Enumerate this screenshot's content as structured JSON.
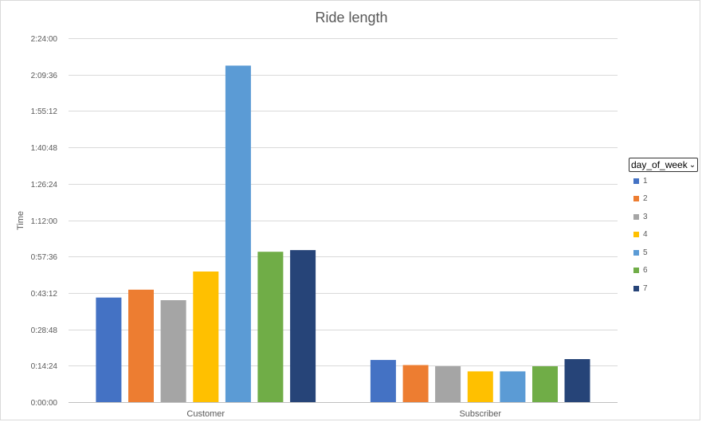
{
  "chart_data": {
    "type": "bar",
    "title": "Ride length",
    "ylabel": "Time",
    "xlabel": "",
    "categories": [
      "Customer",
      "Subscriber"
    ],
    "y_unit": "h:mm:ss",
    "y_ticks": [
      "0:00:00",
      "0:14:24",
      "0:28:48",
      "0:43:12",
      "0:57:36",
      "1:12:00",
      "1:26:24",
      "1:40:48",
      "1:55:12",
      "2:09:36",
      "2:24:00"
    ],
    "ylim": [
      "0:00:00",
      "2:24:00"
    ],
    "grid": true,
    "legend_position": "right",
    "legend_title": "day_of_week",
    "series": [
      {
        "name": "1",
        "color": "#4472C4",
        "values": [
          "0:41:22",
          "0:16:40"
        ]
      },
      {
        "name": "2",
        "color": "#ED7D31",
        "values": [
          "0:44:30",
          "0:14:40"
        ]
      },
      {
        "name": "3",
        "color": "#A5A5A5",
        "values": [
          "0:40:20",
          "0:14:10"
        ]
      },
      {
        "name": "4",
        "color": "#FFC000",
        "values": [
          "0:51:40",
          "0:12:10"
        ]
      },
      {
        "name": "5",
        "color": "#5B9BD5",
        "values": [
          "2:13:10",
          "0:12:10"
        ]
      },
      {
        "name": "6",
        "color": "#70AD47",
        "values": [
          "0:59:30",
          "0:14:10"
        ]
      },
      {
        "name": "7",
        "color": "#264478",
        "values": [
          "1:00:10",
          "0:17:00"
        ]
      }
    ]
  }
}
